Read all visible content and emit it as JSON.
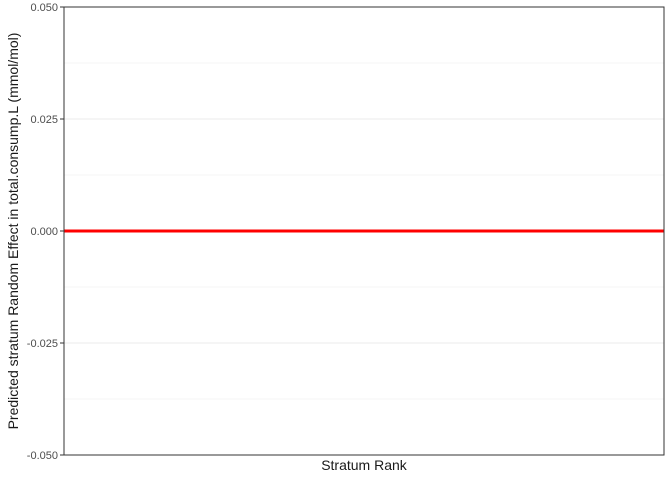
{
  "chart_data": {
    "type": "line",
    "xlabel": "Stratum Rank",
    "ylabel": "Predicted stratum Random Effect in total.consump.L (mmol/mol)",
    "ylim": [
      -0.05,
      0.05
    ],
    "y_ticks": [
      -0.05,
      -0.025,
      0,
      0.025,
      0.05
    ],
    "y_tick_labels": [
      "-0.050",
      "-0.025",
      "0.000",
      "0.025",
      "0.050"
    ],
    "grid": true,
    "legend": "none",
    "series": [
      {
        "values": [
          0,
          0
        ],
        "color": "#ff0000"
      }
    ]
  }
}
